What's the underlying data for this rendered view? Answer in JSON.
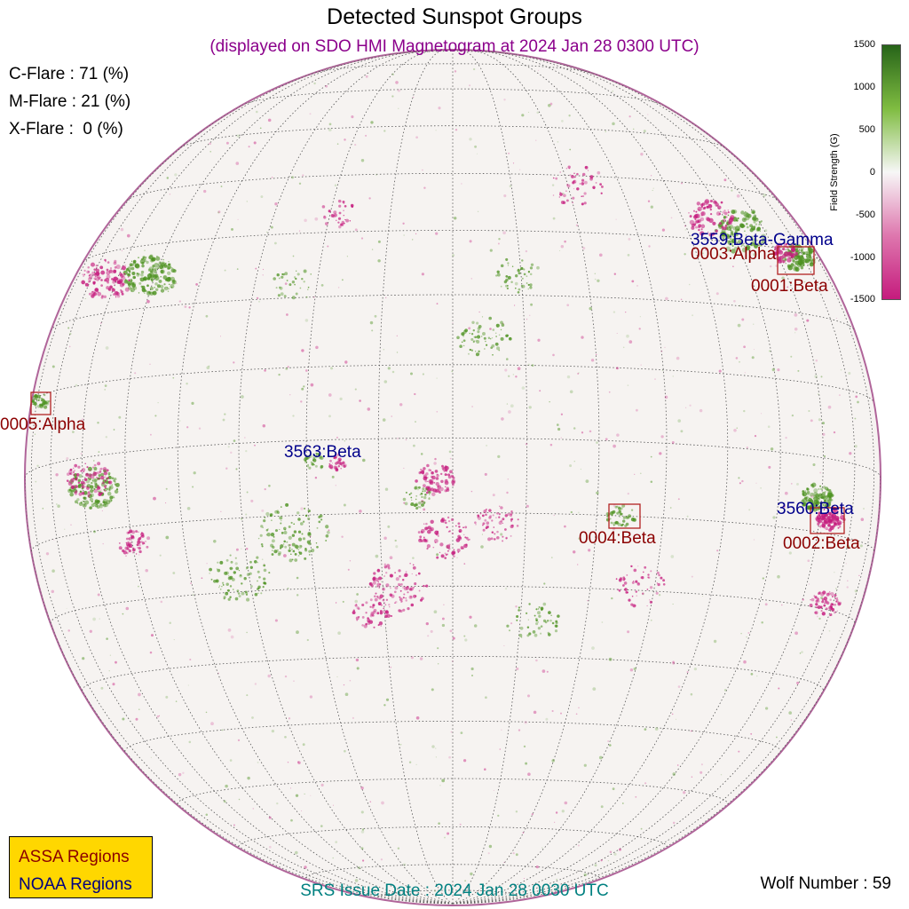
{
  "title": "Detected Sunspot Groups",
  "subtitle": "(displayed on SDO HMI Magnetogram at 2024 Jan 28 0300 UTC)",
  "flare_probabilities": {
    "c": "C-Flare : 71 (%)",
    "m": "M-Flare : 21 (%)",
    "x": "X-Flare :  0 (%)"
  },
  "colorbar": {
    "title": "Field Strength (G)",
    "ticks": [
      "1500",
      "1000",
      "500",
      "0",
      "-500",
      "-1000",
      "-1500"
    ]
  },
  "regions": {
    "noaa_3559": "3559:Beta-Gamma",
    "assa_0003": "0003:Alpha",
    "assa_0001": "0001:Beta",
    "assa_0005": "0005:Alpha",
    "noaa_3563": "3563:Beta",
    "assa_0004": "0004:Beta",
    "noaa_3560": "3560:Beta",
    "assa_0002": "0002:Beta"
  },
  "legend": {
    "assa": "ASSA Regions",
    "noaa": "NOAA Regions"
  },
  "srs_issue": "SRS Issue Date : 2024 Jan 28 0030 UTC",
  "wolf_number": "Wolf Number : 59",
  "colors": {
    "positive_field": "#4d9221",
    "negative_field": "#c51b7d",
    "assa": "#8b0000",
    "noaa": "#00008b",
    "legend_bg": "#ffd700"
  }
}
